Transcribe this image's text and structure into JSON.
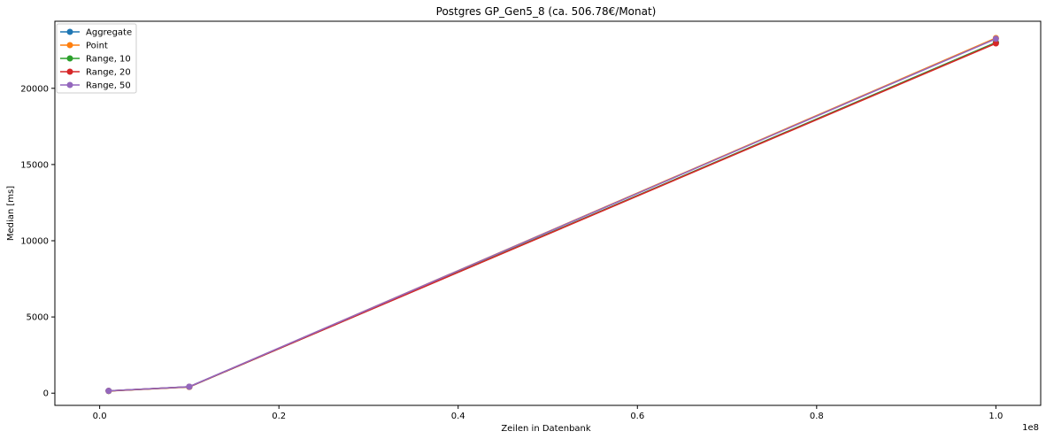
{
  "chart_data": {
    "type": "line",
    "title": "Postgres GP_Gen5_8 (ca. 506.78€/Monat)",
    "xlabel": "Zeilen in Datenbank",
    "ylabel": "Median [ms]",
    "x_offset_label": "1e8",
    "xlim": [
      -0.05,
      1.05
    ],
    "ylim": [
      -800,
      24400
    ],
    "x_ticks": [
      0.0,
      0.2,
      0.4,
      0.6,
      0.8,
      1.0
    ],
    "x_tick_labels": [
      "0.0",
      "0.2",
      "0.4",
      "0.6",
      "0.8",
      "1.0"
    ],
    "y_ticks": [
      0,
      5000,
      10000,
      15000,
      20000
    ],
    "y_tick_labels": [
      "0",
      "5000",
      "10000",
      "15000",
      "20000"
    ],
    "grid": false,
    "legend_position": "top-left",
    "x": [
      0.01,
      0.1,
      1.0
    ],
    "series": [
      {
        "name": "Aggregate",
        "color": "#1f77b4",
        "values": [
          150,
          420,
          23000
        ]
      },
      {
        "name": "Point",
        "color": "#ff7f0e",
        "values": [
          140,
          410,
          23300
        ]
      },
      {
        "name": "Range, 10",
        "color": "#2ca02c",
        "values": [
          145,
          415,
          23000
        ]
      },
      {
        "name": "Range, 20",
        "color": "#d62728",
        "values": [
          148,
          418,
          22950
        ]
      },
      {
        "name": "Range, 50",
        "color": "#9467bd",
        "values": [
          152,
          425,
          23250
        ]
      }
    ]
  }
}
